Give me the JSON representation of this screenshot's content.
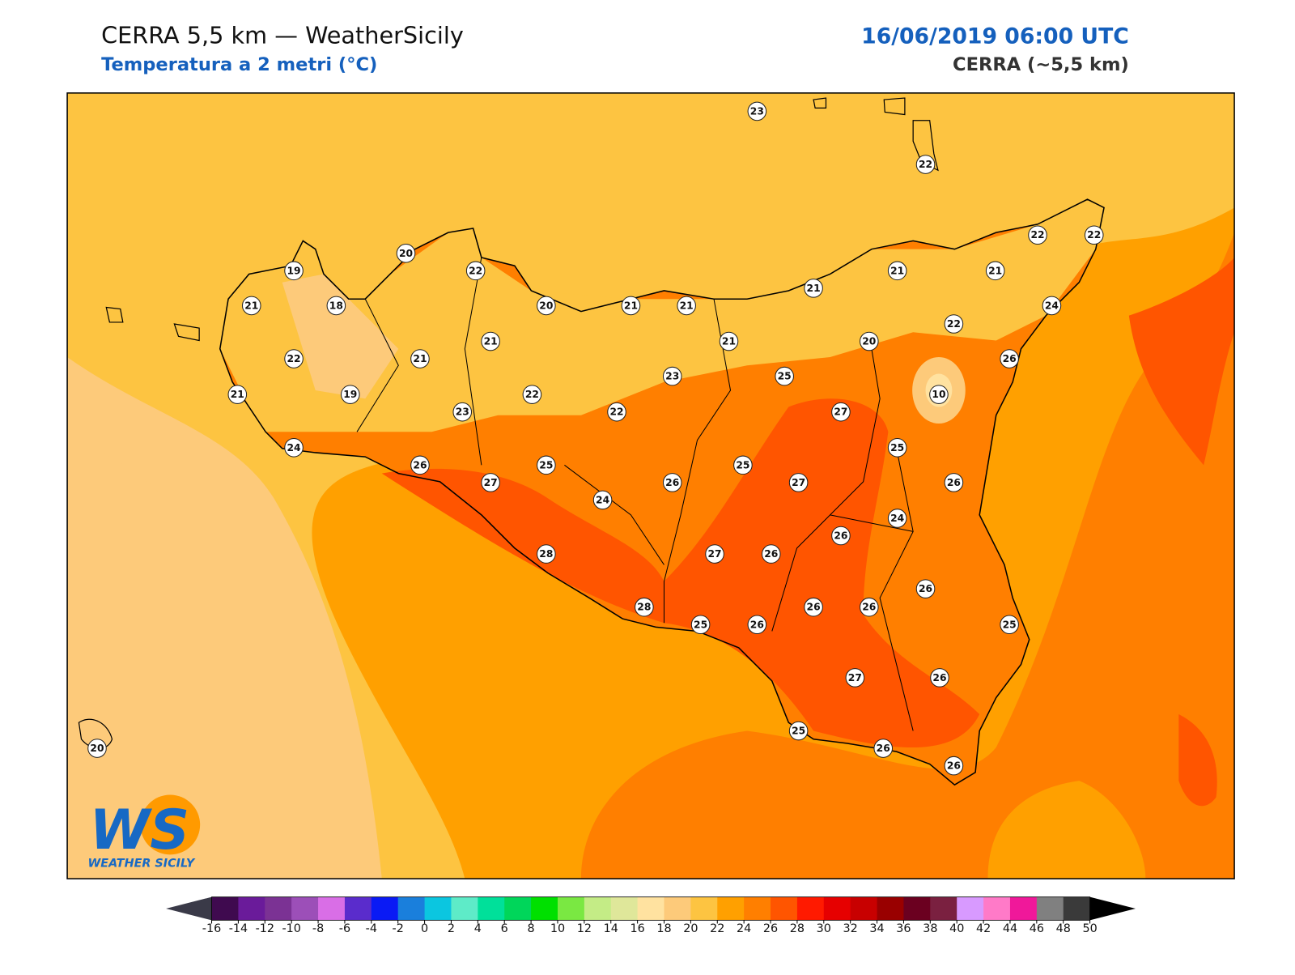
{
  "header": {
    "title": "CERRA 5,5 km — WeatherSicily",
    "subtitle": "Temperatura a 2 metri (°C)",
    "datetime": "16/06/2019 06:00 UTC",
    "model": "CERRA (~5,5 km)"
  },
  "stations": [
    23,
    22,
    22,
    22,
    20,
    19,
    22,
    21,
    21,
    21,
    18,
    20,
    21,
    21,
    21,
    24,
    22,
    21,
    21,
    20,
    22,
    21,
    26,
    23,
    25,
    21,
    19,
    22,
    10,
    23,
    22,
    27,
    24,
    25,
    26,
    25,
    25,
    27,
    26,
    27,
    26,
    24,
    24,
    26,
    28,
    27,
    26,
    26,
    28,
    26,
    26,
    25,
    26,
    25,
    27,
    26,
    25,
    26,
    26,
    20
  ],
  "logo": {
    "text": "WS",
    "subtitle": "WEATHER SICILY"
  },
  "colorbar": {
    "ticks": [
      -16,
      -14,
      -12,
      -10,
      -8,
      -6,
      -4,
      -2,
      0,
      2,
      4,
      6,
      8,
      10,
      12,
      14,
      16,
      18,
      20,
      22,
      24,
      26,
      28,
      30,
      32,
      34,
      36,
      38,
      40,
      42,
      44,
      46,
      48,
      50
    ],
    "colors": [
      "#3f0a4f",
      "#6a1b9a",
      "#7b3294",
      "#9c4fb8",
      "#d96ee6",
      "#5a2ccc",
      "#0a1af5",
      "#1a7fdc",
      "#0bc6e0",
      "#5eebc8",
      "#00e09a",
      "#00d65a",
      "#00e000",
      "#7ae842",
      "#c4ec86",
      "#dfe79a",
      "#ffe2a0",
      "#fdca7a",
      "#fdc441",
      "#ffa000",
      "#ff7f00",
      "#ff5500",
      "#ff1a00",
      "#e60000",
      "#c80000",
      "#990000",
      "#6b0020",
      "#7a2040",
      "#d89aff",
      "#ff7ac8",
      "#f0189a",
      "#808080",
      "#3a3a3a"
    ],
    "under_color": "#3a3a48",
    "over_color": "#000000"
  }
}
